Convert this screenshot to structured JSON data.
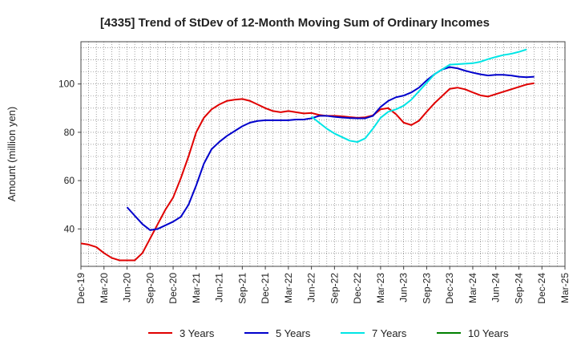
{
  "chart_data": {
    "type": "line",
    "title": "[4335]  Trend of StDev of 12-Month Moving Sum of Ordinary Incomes",
    "xlabel": "",
    "ylabel": "Amount (million yen)",
    "ylim": [
      24.5,
      117.5
    ],
    "yticks": [
      40,
      60,
      80,
      100
    ],
    "x_tick_labels": [
      "Dec-19",
      "Mar-20",
      "Jun-20",
      "Sep-20",
      "Dec-20",
      "Mar-21",
      "Jun-21",
      "Sep-21",
      "Dec-21",
      "Mar-22",
      "Jun-22",
      "Sep-22",
      "Dec-22",
      "Mar-23",
      "Jun-23",
      "Sep-23",
      "Dec-23",
      "Mar-24",
      "Jun-24",
      "Sep-24",
      "Dec-24",
      "Mar-25"
    ],
    "grid": true,
    "series": [
      {
        "name": "3 Years",
        "color": "#e00000",
        "start_month": 0,
        "values": [
          34,
          33.5,
          32.5,
          30,
          28,
          27,
          27,
          27,
          30,
          36,
          42,
          48,
          53,
          61,
          70,
          80,
          86,
          89.5,
          91.5,
          93,
          93.5,
          93.8,
          93,
          91.5,
          90,
          88.8,
          88.3,
          88.8,
          88.3,
          87.8,
          88,
          87.2,
          86.8,
          86.8,
          86.6,
          86.3,
          86,
          86.2,
          87,
          89.5,
          90,
          87.5,
          84,
          83,
          84.8,
          88.5,
          92,
          95,
          98,
          98.5,
          97.8,
          96.5,
          95.3,
          94.8,
          95.8,
          96.8,
          97.8,
          98.8,
          99.8,
          100.3
        ]
      },
      {
        "name": "5 Years",
        "color": "#0000cc",
        "start_month": 6,
        "values": [
          49,
          45.5,
          42,
          39.5,
          40,
          41.5,
          43,
          45,
          50,
          58,
          67,
          73,
          76,
          78.5,
          80.5,
          82.5,
          84,
          84.7,
          85,
          85,
          85,
          85,
          85.3,
          85.3,
          85.8,
          86.8,
          86.8,
          86.4,
          86.1,
          85.9,
          85.8,
          85.8,
          86.8,
          90.5,
          93,
          94.5,
          95.2,
          96.5,
          98.5,
          101.5,
          104,
          106,
          107,
          106.5,
          105.5,
          104.7,
          104,
          103.5,
          103.8,
          103.8,
          103.5,
          103,
          102.8,
          103
        ]
      },
      {
        "name": "7 Years",
        "color": "#00e5e5",
        "start_month": 30,
        "values": [
          86.5,
          84,
          81.5,
          79.5,
          78,
          76.5,
          76,
          77.5,
          81.5,
          86,
          88.5,
          89.5,
          91,
          93.5,
          97,
          100.5,
          104,
          106,
          108,
          108.2,
          108.4,
          108.6,
          109.2,
          110.3,
          111.2,
          112,
          112.5,
          113.3,
          114.3
        ]
      },
      {
        "name": "10 Years",
        "color": "#008000",
        "start_month": 0,
        "values": []
      }
    ]
  }
}
